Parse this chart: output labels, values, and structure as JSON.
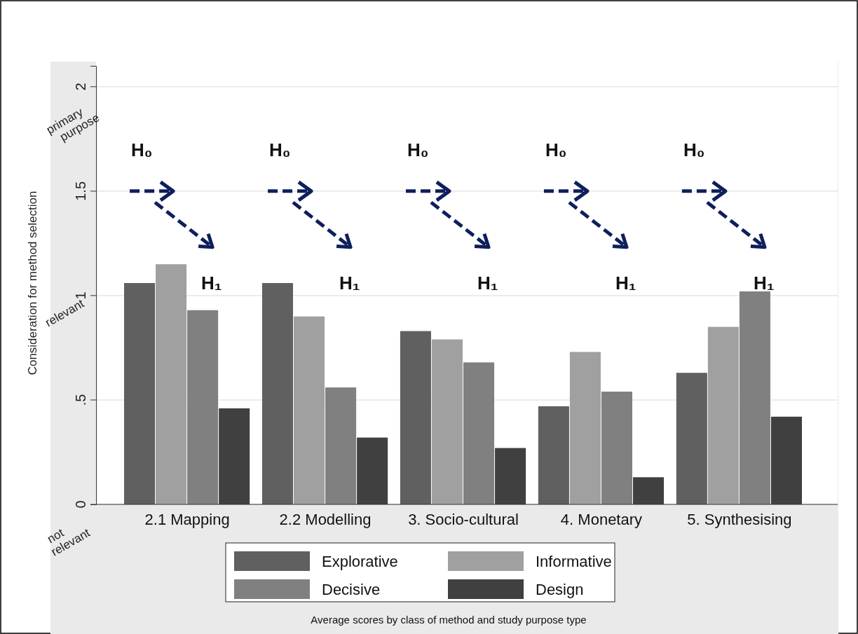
{
  "chart_data": {
    "type": "bar",
    "ylabel": "Consideration for method selection",
    "categories": [
      "2.1 Mapping",
      "2.2 Modelling",
      "3. Socio-cultural",
      "4. Monetary",
      "5. Synthesising"
    ],
    "series": [
      {
        "name": "Explorative",
        "color": "#606060",
        "values": [
          1.06,
          1.06,
          0.83,
          0.47,
          0.63
        ]
      },
      {
        "name": "Informative",
        "color": "#a0a0a0",
        "values": [
          1.15,
          0.9,
          0.79,
          0.73,
          0.85
        ]
      },
      {
        "name": "Decisive",
        "color": "#808080",
        "values": [
          0.93,
          0.56,
          0.68,
          0.54,
          1.02
        ]
      },
      {
        "name": "Design",
        "color": "#404040",
        "values": [
          0.46,
          0.32,
          0.27,
          0.13,
          0.42
        ]
      }
    ],
    "ylim": [
      0,
      2.1
    ],
    "yticks": [
      0,
      {
        "value": 0.5,
        "label": ".5"
      },
      1,
      1.5,
      2
    ],
    "grid": "y",
    "legend": "bottom",
    "annotations": [
      "Average scores by class of method and study purpose type",
      "primary purpose",
      "relevant",
      "not relevant",
      "H₀",
      "H₁",
      "H₀",
      "H₁",
      "H₀",
      "H₁",
      "H₀",
      "H₁",
      "H₀",
      "H₁"
    ]
  }
}
